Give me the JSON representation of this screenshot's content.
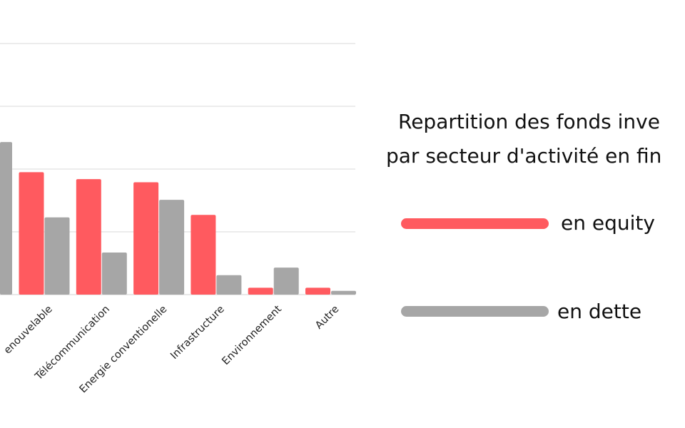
{
  "chart_data": {
    "type": "bar",
    "title_lines": [
      "Repartition des fonds inve",
      "par secteur d'activité en fin"
    ],
    "categories": [
      "enouvelable",
      "Télécommunication",
      "Energie conventionelle",
      "Infrastructure",
      "Environnement",
      "Autre"
    ],
    "series": [
      {
        "name": "en equity",
        "color": "#ff5a5f",
        "values": [
          19.5,
          18.4,
          17.9,
          12.7,
          1.1,
          1.1
        ]
      },
      {
        "name": "en dette",
        "color": "#a6a6a6",
        "values": [
          12.3,
          6.7,
          15.1,
          3.1,
          4.3,
          0.6
        ]
      }
    ],
    "partial_bar": {
      "series": "en dette",
      "value": 24.3
    },
    "ylim": [
      0,
      40
    ],
    "grid": true,
    "legend_position": "right"
  }
}
